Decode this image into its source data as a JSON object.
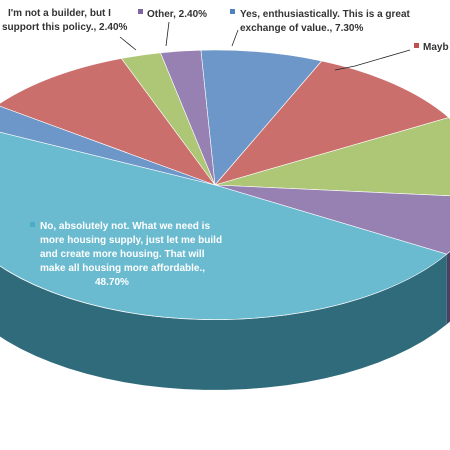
{
  "chart_data": {
    "type": "pie",
    "style": "3d-exploded",
    "slices": [
      {
        "label": "Yes, enthusiastically. This is a great exchange of value.",
        "value": 7.3,
        "color": "#4F81BD",
        "shown": "Yes, enthusiastically. This is a great exchange of value., 7.30%"
      },
      {
        "label": "Mayb",
        "value": 10.2,
        "color": "#C0504D",
        "shown": "Mayb"
      },
      {
        "label": "",
        "value": 9.8,
        "color": "#9BBB59",
        "shown": ""
      },
      {
        "label": "",
        "value": 7.1,
        "color": "#8064A2",
        "shown": ""
      },
      {
        "label": "No, absolutely not. What we need is more housing supply, just let me build and create more housing. That will make all housing more affordable.",
        "value": 48.7,
        "color": "#4BACC6",
        "shown": "No, absolutely not. What we need is more housing supply, just let me build and create more housing. That will make all housing more affordable., 48.70%"
      },
      {
        "label": "",
        "value": 2.8,
        "color": "#4F81BD",
        "shown": ""
      },
      {
        "label": "",
        "value": 9.3,
        "color": "#C0504D",
        "shown": ""
      },
      {
        "label": "I'm not a builder, but I support this policy.",
        "value": 2.4,
        "color": "#9BBB59",
        "shown": "I'm not a builder, but I support this policy., 2.40%"
      },
      {
        "label": "Other",
        "value": 2.4,
        "color": "#8064A2",
        "shown": "Other, 2.40%"
      }
    ],
    "labels": {
      "builder_1": "I'm not a builder, but I",
      "builder_2": "support this policy., 2.40%",
      "other": "Other, 2.40%",
      "yes_1": "Yes, enthusiastically. This is a great",
      "yes_2": "exchange of value., 7.30%",
      "maybe": "Mayb",
      "no_1": "No, absolutely not. What we need is",
      "no_2": "more housing supply, just let me build",
      "no_3": "and create more housing. That will",
      "no_4": "make all housing more affordable.,",
      "no_5": "48.70%"
    },
    "legend": "none",
    "grid": false
  }
}
